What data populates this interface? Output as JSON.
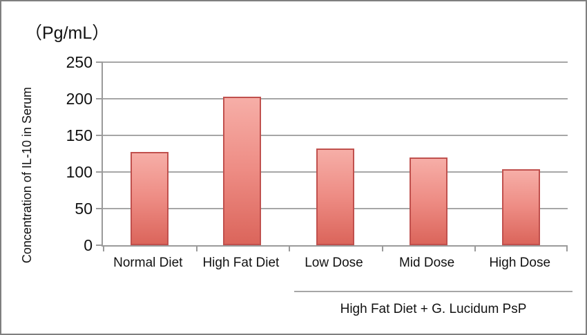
{
  "chart_data": {
    "type": "bar",
    "unit_label": "（Pg/mL）",
    "ylabel": "Concentration of IL-10 in Serum",
    "categories": [
      "Normal Diet",
      "High Fat Diet",
      "Low Dose",
      "Mid Dose",
      "High Dose"
    ],
    "values": [
      127,
      203,
      132,
      120,
      104
    ],
    "ylim": [
      0,
      250
    ],
    "ytick_step": 50,
    "yticks": [
      250,
      200,
      150,
      100,
      50,
      0
    ],
    "grid": true,
    "legend": "none",
    "group_annotation": {
      "label": "High Fat Diet + G. Lucidum PsP",
      "start_category_index": 2,
      "end_category_index": 4
    },
    "colors": {
      "bar_fill_top": "#f6aea7",
      "bar_fill_bottom": "#db655b",
      "bar_border": "#c0504d",
      "grid_line": "#a6a6a6",
      "axis_line": "#9a9a9a",
      "text": "#111111",
      "frame_border": "#7f7f7f",
      "background": "#ffffff"
    }
  }
}
